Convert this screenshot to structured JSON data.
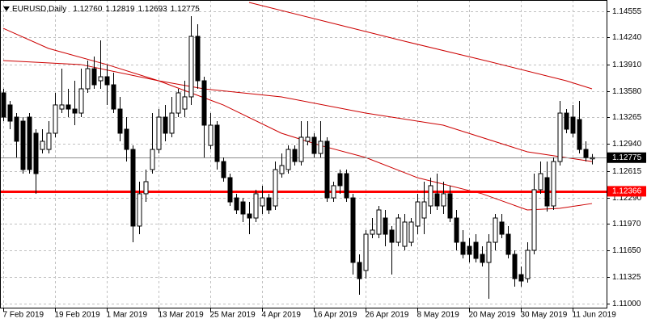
{
  "chart_data": {
    "type": "candlestick",
    "symbol": "EURUSD,Daily",
    "quote": [
      "1.12760",
      "1.12819",
      "1.12693",
      "1.12775"
    ],
    "categories": [
      "7 Feb 2019",
      null,
      null,
      null,
      null,
      null,
      null,
      null,
      "19 Feb 2019",
      null,
      null,
      null,
      null,
      null,
      null,
      null,
      "1 Mar 2019",
      null,
      null,
      null,
      null,
      null,
      null,
      null,
      "13 Mar 2019",
      null,
      null,
      null,
      null,
      null,
      null,
      null,
      "25 Mar 2019",
      null,
      null,
      null,
      null,
      null,
      null,
      null,
      "4 Apr 2019",
      null,
      null,
      null,
      null,
      null,
      null,
      null,
      "16 Apr 2019",
      null,
      null,
      null,
      null,
      null,
      null,
      null,
      "26 Apr 2019",
      null,
      null,
      null,
      null,
      null,
      null,
      null,
      "8 May 2019",
      null,
      null,
      null,
      null,
      null,
      null,
      null,
      "20 May 2019",
      null,
      null,
      null,
      null,
      null,
      null,
      null,
      "30 May 2019",
      null,
      null,
      null,
      null,
      null,
      null,
      null,
      "11 Jun 2019",
      null,
      null,
      null
    ],
    "open": [
      1.13563,
      1.13416,
      1.13268,
      1.13219,
      1.13268,
      1.13072,
      1.12875,
      1.12875,
      1.13072,
      1.13366,
      1.13416,
      1.13366,
      1.13317,
      1.13612,
      1.13857,
      1.1371,
      1.13759,
      1.13661,
      1.13366,
      1.13121,
      1.12875,
      1.11943,
      1.12336,
      1.1263,
      1.12875,
      1.13268,
      1.13072,
      1.13317,
      1.13366,
      1.13514,
      1.1425,
      1.1371,
      1.12924,
      1.1317,
      1.12728,
      1.12532,
      1.12286,
      1.12237,
      1.1209,
      1.12041,
      1.12188,
      1.12286,
      1.12188,
      1.12581,
      1.1263,
      1.12875,
      1.12728,
      1.12974,
      1.13023,
      1.12826,
      1.12974,
      1.12286,
      1.12581,
      1.12581,
      1.12286,
      1.11501,
      1.11403,
      1.11844,
      1.11844,
      1.12041,
      1.11894,
      1.11746,
      1.11697,
      1.11746,
      1.11943,
      1.12041,
      1.12188,
      1.12336,
      1.12188,
      1.12336,
      1.12041,
      1.11746,
      1.11697,
      1.11746,
      1.11599,
      1.11501,
      1.11746,
      1.11992,
      1.11844,
      1.11599,
      1.11353,
      1.11304,
      1.11648,
      1.12385,
      1.12532,
      1.12188,
      1.12728,
      1.13317,
      1.13268,
      1.13239,
      1.12875,
      1.1276
    ],
    "high": [
      1.13612,
      1.13465,
      1.13317,
      1.13268,
      1.13317,
      1.13121,
      1.13121,
      1.13219,
      1.13563,
      1.13857,
      1.13612,
      1.1371,
      1.13857,
      1.13956,
      1.14005,
      1.14201,
      1.13907,
      1.13808,
      1.13514,
      1.13268,
      1.12924,
      1.12483,
      1.1263,
      1.13317,
      1.13366,
      1.13416,
      1.13514,
      1.13612,
      1.1371,
      1.14496,
      1.14397,
      1.13759,
      1.13317,
      1.13219,
      1.12777,
      1.12581,
      1.12336,
      1.12286,
      1.12237,
      1.12385,
      1.12434,
      1.12336,
      1.12728,
      1.12826,
      1.12924,
      1.12924,
      1.13219,
      1.13219,
      1.13072,
      1.13219,
      1.13023,
      1.12483,
      1.1263,
      1.1263,
      1.12336,
      1.11599,
      1.11894,
      1.12041,
      1.12188,
      1.12139,
      1.11943,
      1.1209,
      1.1209,
      1.12041,
      1.12336,
      1.12483,
      1.12532,
      1.12581,
      1.12483,
      1.12434,
      1.12139,
      1.11894,
      1.11795,
      1.11844,
      1.11697,
      1.11844,
      1.1209,
      1.1209,
      1.11943,
      1.11648,
      1.11452,
      1.11746,
      1.12581,
      1.12728,
      1.12728,
      1.12777,
      1.13465,
      1.13366,
      1.13416,
      1.13465,
      1.12974,
      1.12819
    ],
    "low": [
      1.13219,
      1.13121,
      1.12777,
      1.12581,
      1.12581,
      1.12336,
      1.12826,
      1.12826,
      1.13023,
      1.13317,
      1.13268,
      1.1317,
      1.13268,
      1.13563,
      1.13612,
      1.13612,
      1.13416,
      1.13317,
      1.12974,
      1.12728,
      1.11746,
      1.11844,
      1.12237,
      1.12581,
      1.12826,
      1.12974,
      1.13023,
      1.13268,
      1.13268,
      1.13416,
      1.13612,
      1.12777,
      1.12875,
      1.1263,
      1.12483,
      1.12188,
      1.1209,
      1.11992,
      1.11844,
      1.11992,
      1.1209,
      1.1209,
      1.12139,
      1.12532,
      1.12581,
      1.12679,
      1.12679,
      1.12924,
      1.12777,
      1.12777,
      1.12237,
      1.12237,
      1.12336,
      1.12237,
      1.11353,
      1.11108,
      1.11304,
      1.11795,
      1.11795,
      1.11697,
      1.11353,
      1.11697,
      1.11648,
      1.11697,
      1.11844,
      1.11844,
      1.1209,
      1.12139,
      1.1209,
      1.11992,
      1.11648,
      1.1155,
      1.11501,
      1.11501,
      1.11452,
      1.11059,
      1.11648,
      1.11795,
      1.1155,
      1.11206,
      1.11206,
      1.11255,
      1.11599,
      1.12336,
      1.12119,
      1.12139,
      1.12679,
      1.13072,
      1.13023,
      1.12826,
      1.12728,
      1.12693
    ],
    "close": [
      1.13268,
      1.13219,
      1.12974,
      1.1263,
      1.1263,
      1.12581,
      1.12974,
      1.13072,
      1.13416,
      1.13416,
      1.13366,
      1.13317,
      1.13612,
      1.13857,
      1.13661,
      1.13759,
      1.13661,
      1.13366,
      1.13072,
      1.12875,
      1.11943,
      1.12336,
      1.12483,
      1.12875,
      1.13268,
      1.13072,
      1.13317,
      1.13563,
      1.13514,
      1.1425,
      1.1371,
      1.1317,
      1.1317,
      1.12728,
      1.12532,
      1.12237,
      1.12139,
      1.1209,
      1.12041,
      1.12336,
      1.12286,
      1.12139,
      1.1263,
      1.12679,
      1.12875,
      1.12728,
      1.13023,
      1.13023,
      1.12826,
      1.12974,
      1.12286,
      1.12434,
      1.12434,
      1.12286,
      1.11501,
      1.11304,
      1.11844,
      1.11894,
      1.12139,
      1.11844,
      1.11746,
      1.12041,
      1.11992,
      1.11992,
      1.12237,
      1.12237,
      1.12434,
      1.12188,
      1.12336,
      1.12041,
      1.11746,
      1.11599,
      1.11599,
      1.1155,
      1.11501,
      1.11746,
      1.12041,
      1.11844,
      1.11599,
      1.11304,
      1.11275,
      1.11648,
      1.12385,
      1.12581,
      1.12188,
      1.12728,
      1.13317,
      1.13121,
      1.13072,
      1.12875,
      1.12777,
      1.12775
    ],
    "up_color": "#ffffff",
    "down_color": "#000000",
    "lines": [
      {
        "color": "#cc0000",
        "x": [
          38,
          50,
          62,
          75,
          87,
          91
        ],
        "values": [
          1.14663,
          1.14427,
          1.14191,
          1.13946,
          1.1371,
          1.13612
        ]
      },
      {
        "color": "#cc0000",
        "x": [
          0,
          12,
          24,
          31,
          43,
          56,
          68,
          81,
          91
        ],
        "values": [
          1.13956,
          1.13907,
          1.1371,
          1.13612,
          1.13514,
          1.13317,
          1.1317,
          1.12846,
          1.12728
        ]
      },
      {
        "color": "#cc0000",
        "x": [
          0,
          7,
          16,
          24,
          34,
          43,
          49,
          56,
          64,
          74,
          81,
          86,
          91
        ],
        "values": [
          1.14348,
          1.14103,
          1.13907,
          1.1371,
          1.13416,
          1.13072,
          1.12924,
          1.12777,
          1.12532,
          1.12336,
          1.12139,
          1.12159,
          1.12217
        ]
      }
    ],
    "hlines": [
      {
        "value": 1.12366,
        "color": "#ff0000",
        "width": 3
      },
      {
        "value": 1.12775,
        "color": "#8c8c8c",
        "width": 1
      }
    ],
    "ylim": [
      1.10951,
      1.14692
    ],
    "yticks": [
      1.14555,
      {
        "value": 1.1424,
        "label": "1.14240"
      },
      {
        "value": 1.1391,
        "label": "1.13910"
      },
      {
        "value": 1.1358,
        "label": "1.13580"
      },
      1.13265,
      {
        "value": 1.1294,
        "label": "1.12940"
      },
      1.12615,
      {
        "value": 1.1229,
        "label": "1.12290"
      },
      {
        "value": 1.1197,
        "label": "1.11970"
      },
      {
        "value": 1.1165,
        "label": "1.11650"
      },
      1.11325,
      {
        "value": 1.11,
        "label": "1.11000"
      }
    ],
    "grid": true
  }
}
